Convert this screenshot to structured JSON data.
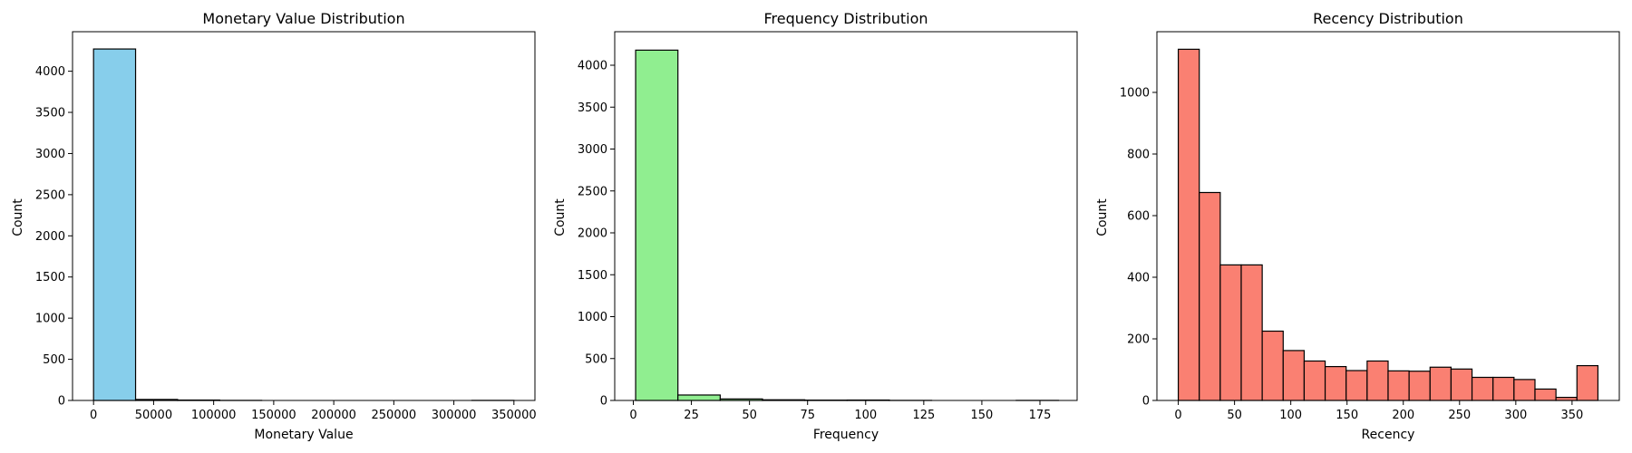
{
  "chart_data": [
    {
      "type": "bar",
      "title": "Monetary Value Distribution",
      "xlabel": "Monetary Value",
      "ylabel": "Count",
      "color": "#87CEEB",
      "xlim": [
        -17500,
        367500
      ],
      "ylim": [
        0,
        4480
      ],
      "xticks": [
        0,
        50000,
        100000,
        150000,
        200000,
        250000,
        300000,
        350000
      ],
      "xtick_labels": [
        "0",
        "50000",
        "100000",
        "150000",
        "200000",
        "250000",
        "300000",
        "350000"
      ],
      "yticks": [
        0,
        500,
        1000,
        1500,
        2000,
        2500,
        3000,
        3500,
        4000
      ],
      "ytick_labels": [
        "0",
        "500",
        "1000",
        "1500",
        "2000",
        "2500",
        "3000",
        "3500",
        "4000"
      ],
      "bins": [
        {
          "x0": 0,
          "x1": 35000,
          "count": 4270
        },
        {
          "x0": 35000,
          "x1": 70000,
          "count": 12
        },
        {
          "x0": 70000,
          "x1": 105000,
          "count": 5
        },
        {
          "x0": 105000,
          "x1": 140000,
          "count": 1
        },
        {
          "x0": 140000,
          "x1": 175000,
          "count": 0
        },
        {
          "x0": 175000,
          "x1": 210000,
          "count": 0
        },
        {
          "x0": 210000,
          "x1": 245000,
          "count": 0
        },
        {
          "x0": 245000,
          "x1": 280000,
          "count": 0
        },
        {
          "x0": 280000,
          "x1": 315000,
          "count": 0
        },
        {
          "x0": 315000,
          "x1": 350000,
          "count": 1
        }
      ]
    },
    {
      "type": "bar",
      "title": "Frequency Distribution",
      "xlabel": "Frequency",
      "ylabel": "Count",
      "color": "#90EE90",
      "xlim": [
        -8,
        191
      ],
      "ylim": [
        0,
        4400
      ],
      "xticks": [
        0,
        25,
        50,
        75,
        100,
        125,
        150,
        175
      ],
      "xtick_labels": [
        "0",
        "25",
        "50",
        "75",
        "100",
        "125",
        "150",
        "175"
      ],
      "yticks": [
        0,
        500,
        1000,
        1500,
        2000,
        2500,
        3000,
        3500,
        4000
      ],
      "ytick_labels": [
        "0",
        "500",
        "1000",
        "1500",
        "2000",
        "2500",
        "3000",
        "3500",
        "4000"
      ],
      "bins": [
        {
          "x0": 1,
          "x1": 19.2,
          "count": 4180
        },
        {
          "x0": 19.2,
          "x1": 37.4,
          "count": 65
        },
        {
          "x0": 37.4,
          "x1": 55.6,
          "count": 18
        },
        {
          "x0": 55.6,
          "x1": 73.8,
          "count": 8
        },
        {
          "x0": 73.8,
          "x1": 92,
          "count": 4
        },
        {
          "x0": 92,
          "x1": 110.2,
          "count": 5
        },
        {
          "x0": 110.2,
          "x1": 128.4,
          "count": 1
        },
        {
          "x0": 128.4,
          "x1": 146.6,
          "count": 0
        },
        {
          "x0": 146.6,
          "x1": 164.8,
          "count": 0
        },
        {
          "x0": 164.8,
          "x1": 183,
          "count": 1
        }
      ]
    },
    {
      "type": "bar",
      "title": "Recency Distribution",
      "xlabel": "Recency",
      "ylabel": "Count",
      "color": "#FA8072",
      "xlim": [
        -19,
        392
      ],
      "ylim": [
        0,
        1197
      ],
      "xticks": [
        0,
        50,
        100,
        150,
        200,
        250,
        300,
        350
      ],
      "xtick_labels": [
        "0",
        "50",
        "100",
        "150",
        "200",
        "250",
        "300",
        "350"
      ],
      "yticks": [
        0,
        200,
        400,
        600,
        800,
        1000
      ],
      "ytick_labels": [
        "0",
        "200",
        "400",
        "600",
        "800",
        "1000"
      ],
      "bins": [
        {
          "x0": 0,
          "x1": 18.65,
          "count": 1140
        },
        {
          "x0": 18.65,
          "x1": 37.3,
          "count": 675
        },
        {
          "x0": 37.3,
          "x1": 55.95,
          "count": 440
        },
        {
          "x0": 55.95,
          "x1": 74.6,
          "count": 440
        },
        {
          "x0": 74.6,
          "x1": 93.25,
          "count": 225
        },
        {
          "x0": 93.25,
          "x1": 111.9,
          "count": 162
        },
        {
          "x0": 111.9,
          "x1": 130.55,
          "count": 128
        },
        {
          "x0": 130.55,
          "x1": 149.2,
          "count": 110
        },
        {
          "x0": 149.2,
          "x1": 167.85,
          "count": 97
        },
        {
          "x0": 167.85,
          "x1": 186.5,
          "count": 128
        },
        {
          "x0": 186.5,
          "x1": 205.15,
          "count": 96
        },
        {
          "x0": 205.15,
          "x1": 223.8,
          "count": 95
        },
        {
          "x0": 223.8,
          "x1": 242.45,
          "count": 108
        },
        {
          "x0": 242.45,
          "x1": 261.1,
          "count": 102
        },
        {
          "x0": 261.1,
          "x1": 279.75,
          "count": 75
        },
        {
          "x0": 279.75,
          "x1": 298.4,
          "count": 75
        },
        {
          "x0": 298.4,
          "x1": 317.05,
          "count": 68
        },
        {
          "x0": 317.05,
          "x1": 335.7,
          "count": 37
        },
        {
          "x0": 335.7,
          "x1": 354.35,
          "count": 10
        },
        {
          "x0": 354.35,
          "x1": 373,
          "count": 113
        }
      ]
    }
  ]
}
